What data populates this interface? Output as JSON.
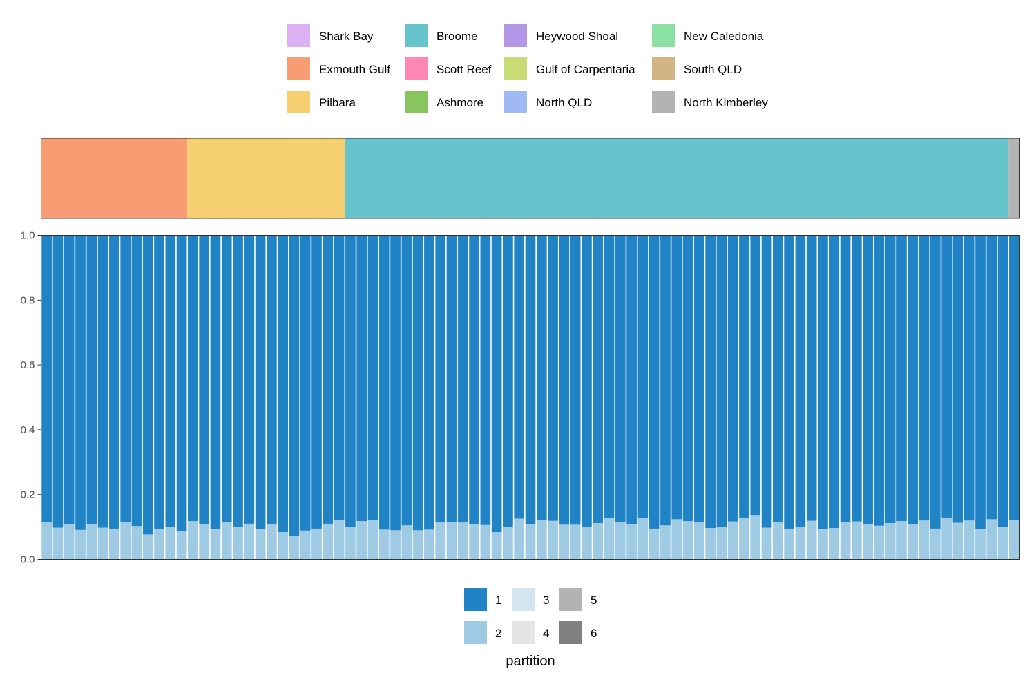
{
  "chart_data": {
    "type": "bar",
    "stacked": true,
    "ylim": [
      0,
      1
    ],
    "yticks": [
      0.0,
      0.2,
      0.4,
      0.6,
      0.8,
      1.0
    ],
    "ytick_labels": [
      "0.0",
      "0.2",
      "0.4",
      "0.6",
      "0.8",
      "1.0"
    ],
    "location_legend": {
      "position": "top",
      "entries": [
        {
          "label": "Shark Bay",
          "color": "#dcb0f2"
        },
        {
          "label": "Exmouth Gulf",
          "color": "#f89c74"
        },
        {
          "label": "Pilbara",
          "color": "#f6cf71"
        },
        {
          "label": "Broome",
          "color": "#66c5cc"
        },
        {
          "label": "Scott Reef",
          "color": "#fe88b1"
        },
        {
          "label": "Ashmore",
          "color": "#87c55f"
        },
        {
          "label": "Heywood Shoal",
          "color": "#b497e7"
        },
        {
          "label": "Gulf of Carpentaria",
          "color": "#c9db74"
        },
        {
          "label": "North QLD",
          "color": "#9eb9f3"
        },
        {
          "label": "New Caledonia",
          "color": "#8be0a4"
        },
        {
          "label": "South QLD",
          "color": "#d3b484"
        },
        {
          "label": "North Kimberley",
          "color": "#b3b3b3"
        }
      ]
    },
    "location_strip": [
      {
        "label": "Exmouth Gulf",
        "count": 13
      },
      {
        "label": "Pilbara",
        "count": 14
      },
      {
        "label": "Broome",
        "count": 59
      },
      {
        "label": "North Kimberley",
        "count": 1
      }
    ],
    "partition_legend": {
      "title": "partition",
      "entries": [
        {
          "label": "1",
          "color": "#1f83c6"
        },
        {
          "label": "2",
          "color": "#9ecae4"
        },
        {
          "label": "3",
          "color": "#d5e6f3"
        },
        {
          "label": "4",
          "color": "#e5e5e5"
        },
        {
          "label": "5",
          "color": "#b3b3b3"
        },
        {
          "label": "6",
          "color": "#808080"
        }
      ]
    },
    "series": [
      {
        "name": "2",
        "values": [
          0.115,
          0.098,
          0.109,
          0.091,
          0.108,
          0.098,
          0.095,
          0.115,
          0.103,
          0.077,
          0.093,
          0.1,
          0.087,
          0.118,
          0.109,
          0.094,
          0.115,
          0.1,
          0.11,
          0.094,
          0.108,
          0.084,
          0.073,
          0.089,
          0.095,
          0.11,
          0.122,
          0.1,
          0.118,
          0.122,
          0.092,
          0.09,
          0.105,
          0.09,
          0.092,
          0.116,
          0.116,
          0.114,
          0.109,
          0.106,
          0.084,
          0.1,
          0.126,
          0.108,
          0.122,
          0.119,
          0.107,
          0.107,
          0.1,
          0.112,
          0.129,
          0.114,
          0.108,
          0.127,
          0.095,
          0.105,
          0.124,
          0.118,
          0.114,
          0.097,
          0.1,
          0.117,
          0.127,
          0.135,
          0.098,
          0.114,
          0.093,
          0.1,
          0.119,
          0.093,
          0.097,
          0.115,
          0.117,
          0.108,
          0.104,
          0.112,
          0.118,
          0.108,
          0.12,
          0.095,
          0.127,
          0.113,
          0.12,
          0.094,
          0.124,
          0.1,
          0.122
        ]
      },
      {
        "name": "1",
        "values": [
          0.885,
          0.902,
          0.891,
          0.909,
          0.892,
          0.902,
          0.905,
          0.885,
          0.897,
          0.923,
          0.907,
          0.9,
          0.913,
          0.882,
          0.891,
          0.906,
          0.885,
          0.9,
          0.89,
          0.906,
          0.892,
          0.916,
          0.927,
          0.911,
          0.905,
          0.89,
          0.878,
          0.9,
          0.882,
          0.878,
          0.908,
          0.91,
          0.895,
          0.91,
          0.908,
          0.884,
          0.884,
          0.886,
          0.891,
          0.894,
          0.916,
          0.9,
          0.874,
          0.892,
          0.878,
          0.881,
          0.893,
          0.893,
          0.9,
          0.888,
          0.871,
          0.886,
          0.892,
          0.873,
          0.905,
          0.895,
          0.876,
          0.882,
          0.886,
          0.903,
          0.9,
          0.883,
          0.873,
          0.865,
          0.902,
          0.886,
          0.907,
          0.9,
          0.881,
          0.907,
          0.903,
          0.885,
          0.883,
          0.892,
          0.896,
          0.888,
          0.882,
          0.892,
          0.88,
          0.905,
          0.873,
          0.887,
          0.88,
          0.906,
          0.876,
          0.9,
          0.878
        ]
      }
    ]
  }
}
